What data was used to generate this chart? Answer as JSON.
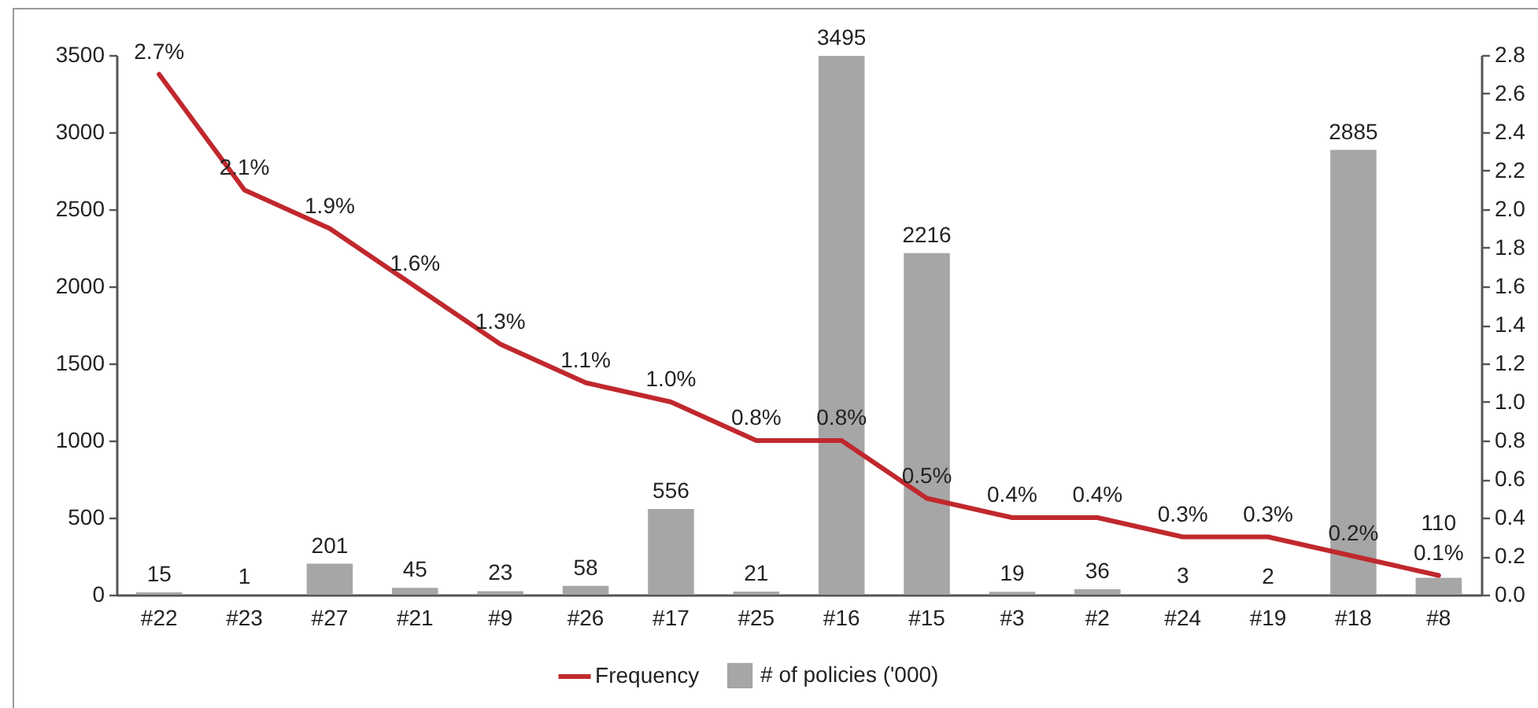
{
  "chart_data": {
    "type": "bar",
    "categories": [
      "#22",
      "#23",
      "#27",
      "#21",
      "#9",
      "#26",
      "#17",
      "#25",
      "#16",
      "#15",
      "#3",
      "#2",
      "#24",
      "#19",
      "#18",
      "#8"
    ],
    "series": [
      {
        "name": "Frequency",
        "type": "line",
        "axis": "y2",
        "color": "#c0282d",
        "values": [
          2.7,
          2.1,
          1.9,
          1.6,
          1.3,
          1.1,
          1.0,
          0.8,
          0.8,
          0.5,
          0.4,
          0.4,
          0.3,
          0.3,
          0.2,
          0.1
        ],
        "value_labels": [
          "2.7%",
          "2.1%",
          "1.9%",
          "1.6%",
          "1.3%",
          "1.1%",
          "1.0%",
          "0.8%",
          "0.8%",
          "0.5%",
          "0.4%",
          "0.4%",
          "0.3%",
          "0.3%",
          "0.2%",
          "0.1%"
        ]
      },
      {
        "name": "# of policies ('000)",
        "type": "bar",
        "color": "#a6a6a6",
        "values": [
          15,
          1,
          201,
          45,
          23,
          58,
          556,
          21,
          3495,
          2216,
          19,
          36,
          3,
          2,
          2885,
          110
        ],
        "value_labels": [
          "15",
          "1",
          "201",
          "45",
          "23",
          "58",
          "556",
          "21",
          "3495",
          "2216",
          "19",
          "36",
          "3",
          "2",
          "2885",
          "110"
        ]
      }
    ],
    "ylim": [
      0,
      3500
    ],
    "yticks": [
      0,
      500,
      1000,
      1500,
      2000,
      2500,
      3000,
      3500
    ],
    "y2lim": [
      0,
      2.8
    ],
    "y2ticks": [
      {
        "value": 0,
        "label": "0.0"
      },
      0.2,
      0.4,
      0.6,
      0.8,
      {
        "value": 1,
        "label": "1.0"
      },
      1.2,
      1.4,
      1.6,
      1.8,
      {
        "value": 2,
        "label": "2.0"
      },
      2.2,
      2.4,
      2.6,
      2.8
    ],
    "legend": "bottom"
  }
}
